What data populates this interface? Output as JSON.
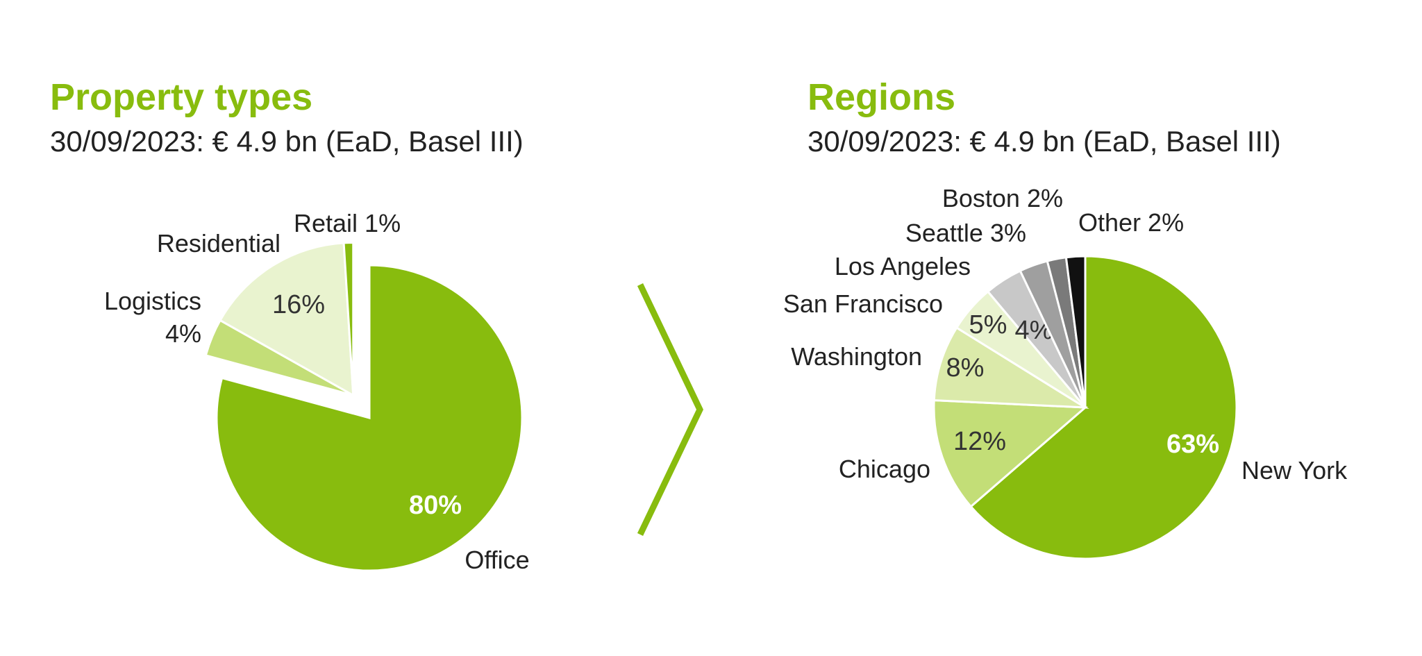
{
  "colors": {
    "accent": "#88bc0e",
    "text": "#222222",
    "slice_border": "#ffffff"
  },
  "chart_data": [
    {
      "type": "pie",
      "title": "Property types",
      "subtitle": "30/09/2023: € 4.9 bn (EaD, Basel III)",
      "slices": [
        {
          "name": "Office",
          "value": 80,
          "pct_label": "80%",
          "color": "#88bc0e",
          "pct_color": "#ffffff"
        },
        {
          "name": "Logistics",
          "value": 4,
          "pct_label": "4%",
          "color": "#c3de77",
          "pct_color": "#222222",
          "exploded": true
        },
        {
          "name": "Residential",
          "value": 16,
          "pct_label": "16%",
          "color": "#e9f3cf",
          "pct_color": "#333333",
          "exploded": true
        },
        {
          "name": "Retail",
          "value": 1,
          "pct_label": "1%",
          "color": "#88bc0e",
          "pct_color": "#222222",
          "exploded": true
        }
      ]
    },
    {
      "type": "pie",
      "title": "Regions",
      "subtitle": "30/09/2023: € 4.9 bn (EaD, Basel III)",
      "slices": [
        {
          "name": "New York",
          "value": 63,
          "pct_label": "63%",
          "color": "#88bc0e",
          "pct_color": "#ffffff"
        },
        {
          "name": "Chicago",
          "value": 12,
          "pct_label": "12%",
          "color": "#c3de77",
          "pct_color": "#333333"
        },
        {
          "name": "Washington",
          "value": 8,
          "pct_label": "8%",
          "color": "#dbeaaa",
          "pct_color": "#333333"
        },
        {
          "name": "San Francisco",
          "value": 5,
          "pct_label": "5%",
          "color": "#e9f3cf",
          "pct_color": "#333333"
        },
        {
          "name": "Los Angeles",
          "value": 4,
          "pct_label": "4%",
          "color": "#c8c8c8",
          "pct_color": "#333333"
        },
        {
          "name": "Seattle",
          "value": 3,
          "pct_label": "3%",
          "color": "#9f9f9f",
          "pct_color": "#333333"
        },
        {
          "name": "Boston",
          "value": 2,
          "pct_label": "2%",
          "color": "#7a7a7a",
          "pct_color": "#333333"
        },
        {
          "name": "Other",
          "value": 2,
          "pct_label": "2%",
          "color": "#111111",
          "pct_color": "#333333"
        }
      ]
    }
  ]
}
